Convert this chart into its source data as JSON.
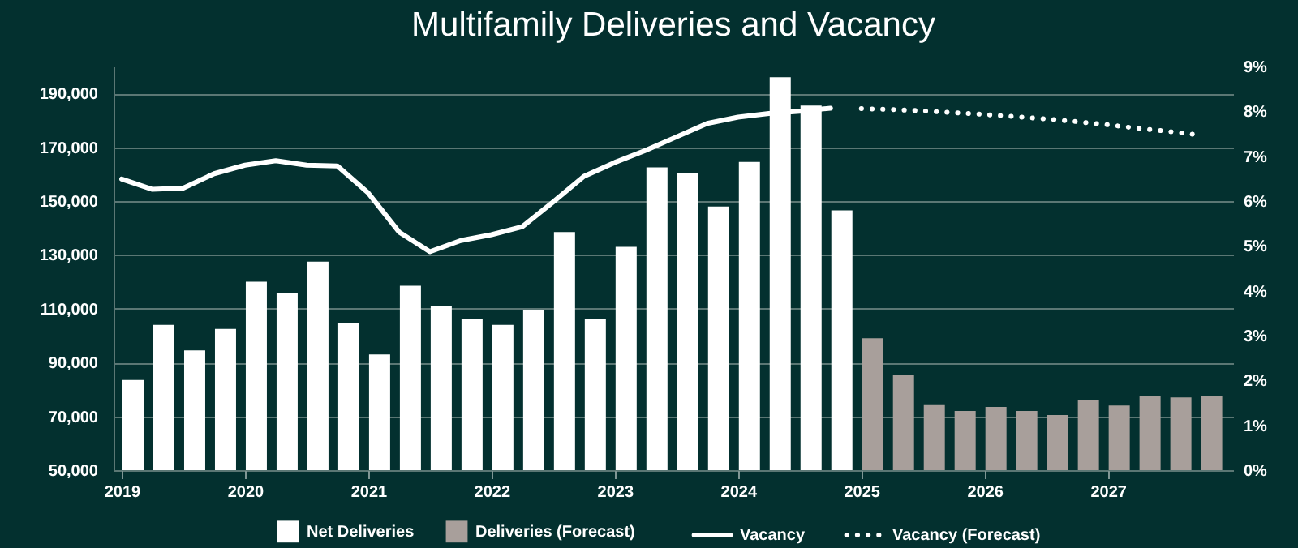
{
  "chart_data": {
    "type": "bar",
    "title": "Multifamily Deliveries and Vacancy",
    "x": [
      2019,
      2019.25,
      2019.5,
      2019.75,
      2020,
      2020.25,
      2020.5,
      2020.75,
      2021,
      2021.25,
      2021.5,
      2021.75,
      2022,
      2022.25,
      2022.5,
      2022.75,
      2023,
      2023.25,
      2023.5,
      2023.75,
      2024,
      2024.25,
      2024.5,
      2024.75,
      2025,
      2025.25,
      2025.5,
      2025.75,
      2026,
      2026.25,
      2026.5,
      2026.75,
      2027,
      2027.25,
      2027.5,
      2027.75
    ],
    "xlim": [
      2019,
      2027.95
    ],
    "xticks": [
      {
        "value": 2019,
        "label": "2019"
      },
      {
        "value": 2020,
        "label": "2020"
      },
      {
        "value": 2021,
        "label": "2021"
      },
      {
        "value": 2022,
        "label": "2022"
      },
      {
        "value": 2023,
        "label": "2023"
      },
      {
        "value": 2024,
        "label": "2024"
      },
      {
        "value": 2025,
        "label": "2025"
      },
      {
        "value": 2026,
        "label": "2026"
      },
      {
        "value": 2027,
        "label": "2027"
      }
    ],
    "ylim": [
      50000,
      200000
    ],
    "yticks": [
      {
        "value": 50000,
        "label": "50,000"
      },
      {
        "value": 70000,
        "label": "70,000"
      },
      {
        "value": 90000,
        "label": "90,000"
      },
      {
        "value": 110000,
        "label": "110,000"
      },
      {
        "value": 130000,
        "label": "130,000"
      },
      {
        "value": 150000,
        "label": "150,000"
      },
      {
        "value": 170000,
        "label": "170,000"
      },
      {
        "value": 190000,
        "label": "190,000"
      }
    ],
    "y2lim": [
      0,
      9
    ],
    "y2ticks": [
      {
        "value": 0,
        "label": "0%"
      },
      {
        "value": 1,
        "label": "1%"
      },
      {
        "value": 2,
        "label": "2%"
      },
      {
        "value": 3,
        "label": "3%"
      },
      {
        "value": 4,
        "label": "4%"
      },
      {
        "value": 5,
        "label": "5%"
      },
      {
        "value": 6,
        "label": "6%"
      },
      {
        "value": 7,
        "label": "7%"
      },
      {
        "value": 8,
        "label": "8%"
      },
      {
        "value": 9,
        "label": "9%"
      }
    ],
    "grid": "y",
    "legend": "bottom",
    "series": [
      {
        "name": "Net Deliveries",
        "color": "#ffffff",
        "values": [
          83500,
          104000,
          94500,
          102500,
          120000,
          116000,
          127500,
          104500,
          93000,
          118500,
          111000,
          106000,
          104000,
          109500,
          138500,
          106000,
          133000,
          162500,
          160500,
          148000,
          164500,
          196000,
          185500,
          146500,
          null,
          null,
          null,
          null,
          null,
          null,
          null,
          null,
          null,
          null,
          null,
          null
        ]
      },
      {
        "name": "Deliveries (Forecast)",
        "color": "#a89f9b",
        "values": [
          null,
          null,
          null,
          null,
          null,
          null,
          null,
          null,
          null,
          null,
          null,
          null,
          null,
          null,
          null,
          null,
          null,
          null,
          null,
          null,
          null,
          null,
          null,
          null,
          99000,
          85500,
          74500,
          72000,
          73500,
          72000,
          70500,
          76000,
          74000,
          77500,
          77000,
          77500
        ]
      },
      {
        "name": "Vacancy",
        "type": "line",
        "axis": "y2",
        "line_style": "solid",
        "color": "#ffffff",
        "values": [
          6.49,
          6.26,
          6.29,
          6.61,
          6.8,
          6.9,
          6.8,
          6.78,
          6.18,
          5.31,
          4.87,
          5.12,
          5.25,
          5.43,
          5.98,
          6.55,
          6.86,
          7.13,
          7.43,
          7.73,
          7.87,
          7.95,
          8.0,
          8.07,
          null,
          null,
          null,
          null,
          null,
          null,
          null,
          null,
          null,
          null,
          null,
          null
        ]
      },
      {
        "name": "Vacancy (Forecast)",
        "type": "line",
        "axis": "y2",
        "line_style": "dotted",
        "color": "#ffffff",
        "values": [
          null,
          null,
          null,
          null,
          null,
          null,
          null,
          null,
          null,
          null,
          null,
          null,
          null,
          null,
          null,
          null,
          null,
          null,
          null,
          null,
          null,
          null,
          null,
          null,
          8.06,
          8.04,
          8.01,
          7.97,
          7.93,
          7.88,
          7.83,
          7.77,
          7.7,
          7.62,
          7.55,
          7.47
        ]
      }
    ]
  }
}
